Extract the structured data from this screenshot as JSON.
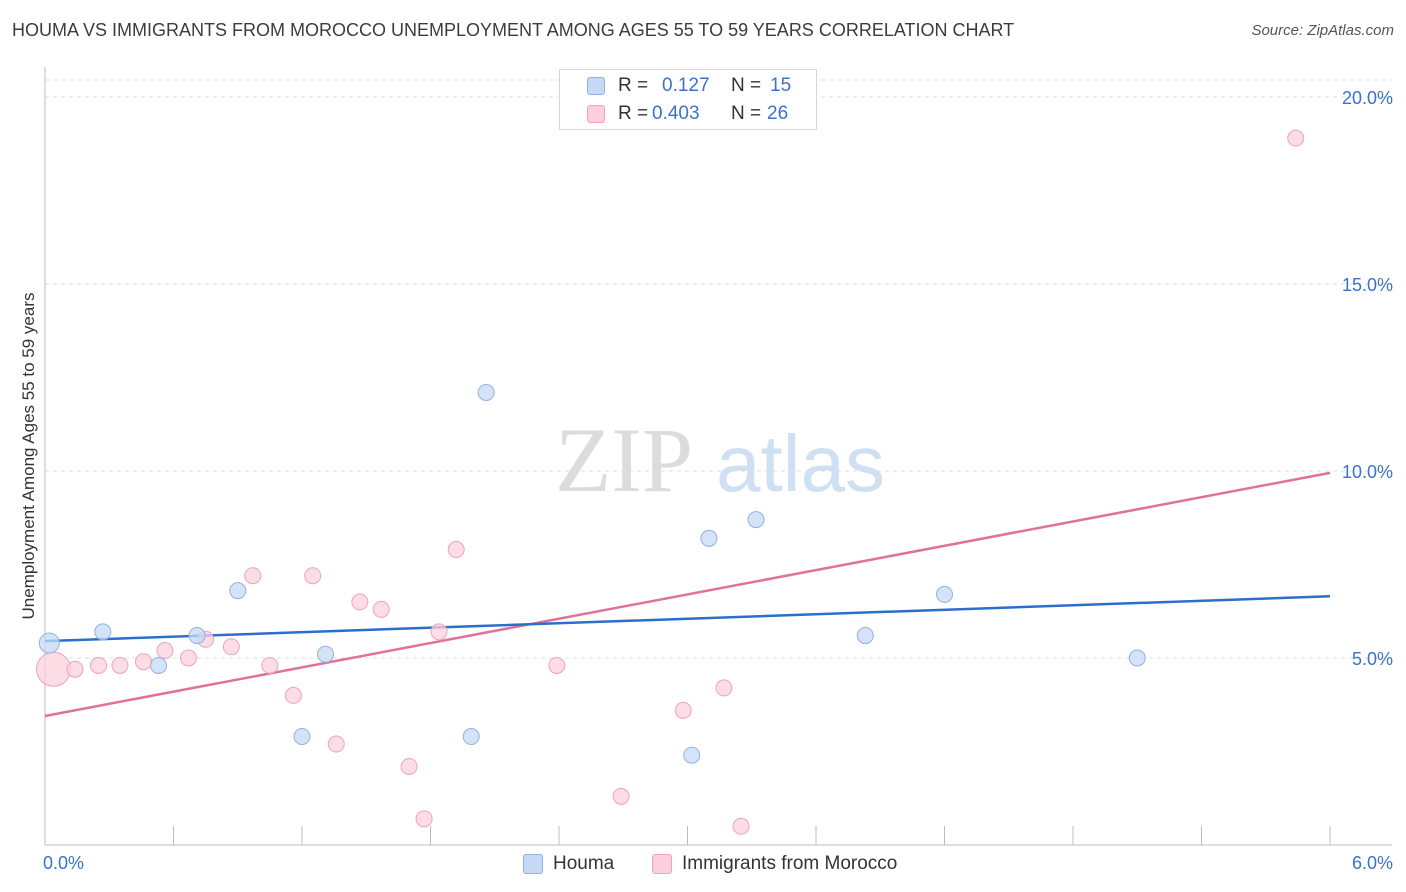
{
  "title": "HOUMA VS IMMIGRANTS FROM MOROCCO UNEMPLOYMENT AMONG AGES 55 TO 59 YEARS CORRELATION CHART",
  "source": "Source: ZipAtlas.com",
  "watermark": {
    "zip": "ZIP",
    "atlas": "atlas"
  },
  "legend": {
    "rows": [
      {
        "r_label": "R = ",
        "r_value": "0.127",
        "n_label": "N = ",
        "n_value": "15"
      },
      {
        "r_label": "R = ",
        "r_value": "0.403",
        "n_label": "N = ",
        "n_value": "26"
      }
    ]
  },
  "bottom_legend": [
    "Houma",
    "Immigrants from Morocco"
  ],
  "colors": {
    "houma_fill": "#c5d9f5",
    "houma_stroke": "#8fb2e6",
    "houma_line": "#2b6fcc",
    "morocco_fill": "#fbd0dc",
    "morocco_stroke": "#f0a3ba",
    "morocco_line": "#e0729a",
    "axis_text": "#3a73c8",
    "grid": "#dddddd"
  },
  "chart_data": {
    "type": "scatter",
    "title": "HOUMA VS IMMIGRANTS FROM MOROCCO UNEMPLOYMENT AMONG AGES 55 TO 59 YEARS CORRELATION CHART",
    "xlabel": "",
    "ylabel": "Unemployment Among Ages 55 to 59 years",
    "xlim": [
      0,
      6
    ],
    "ylim": [
      0,
      20
    ],
    "x_tick_labels": [
      "0.0%",
      "6.0%"
    ],
    "y_ticks": [
      5,
      10,
      15,
      20
    ],
    "y_tick_labels": [
      "5.0%",
      "10.0%",
      "15.0%",
      "20.0%"
    ],
    "grid": true,
    "series": [
      {
        "name": "Houma",
        "r": 0.127,
        "n": 15,
        "points": [
          [
            0.02,
            5.4
          ],
          [
            0.27,
            5.7
          ],
          [
            0.53,
            4.8
          ],
          [
            0.71,
            5.6
          ],
          [
            0.9,
            6.8
          ],
          [
            1.2,
            2.9
          ],
          [
            1.31,
            5.1
          ],
          [
            1.99,
            2.9
          ],
          [
            2.06,
            12.1
          ],
          [
            3.02,
            2.4
          ],
          [
            3.1,
            8.2
          ],
          [
            3.32,
            8.7
          ],
          [
            3.83,
            5.6
          ],
          [
            4.2,
            6.7
          ],
          [
            5.1,
            5.0
          ]
        ],
        "trend": {
          "x": [
            0,
            6
          ],
          "y": [
            5.45,
            6.65
          ]
        }
      },
      {
        "name": "Immigrants from Morocco",
        "r": 0.403,
        "n": 26,
        "points": [
          [
            0.04,
            4.7
          ],
          [
            0.14,
            4.7
          ],
          [
            0.25,
            4.8
          ],
          [
            0.35,
            4.8
          ],
          [
            0.46,
            4.9
          ],
          [
            0.56,
            5.2
          ],
          [
            0.67,
            5.0
          ],
          [
            0.75,
            5.5
          ],
          [
            0.87,
            5.3
          ],
          [
            0.97,
            7.2
          ],
          [
            1.05,
            4.8
          ],
          [
            1.16,
            4.0
          ],
          [
            1.25,
            7.2
          ],
          [
            1.36,
            2.7
          ],
          [
            1.47,
            6.5
          ],
          [
            1.57,
            6.3
          ],
          [
            1.7,
            2.1
          ],
          [
            1.77,
            0.7
          ],
          [
            1.84,
            5.7
          ],
          [
            1.92,
            7.9
          ],
          [
            2.39,
            4.8
          ],
          [
            2.69,
            1.3
          ],
          [
            2.98,
            3.6
          ],
          [
            3.17,
            4.2
          ],
          [
            3.25,
            0.5
          ],
          [
            5.84,
            18.9
          ]
        ],
        "trend": {
          "x": [
            0,
            6
          ],
          "y": [
            3.45,
            9.95
          ]
        }
      }
    ]
  }
}
